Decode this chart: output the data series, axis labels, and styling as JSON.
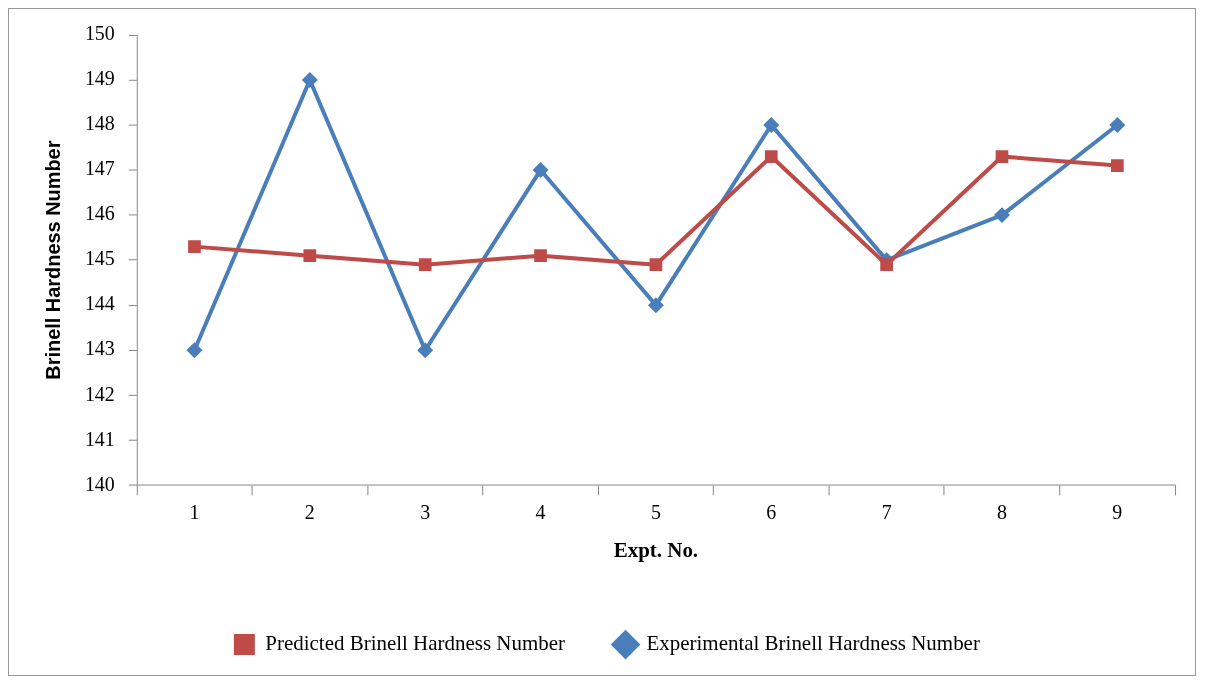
{
  "chart_data": {
    "type": "line",
    "xlabel": "Expt. No.",
    "ylabel": "Brinell Hardness Number",
    "categories": [
      "1",
      "2",
      "3",
      "4",
      "5",
      "6",
      "7",
      "8",
      "9"
    ],
    "series": [
      {
        "name": "Experimental Brinell Hardness Number",
        "color": "#4a7ebb",
        "marker": "diamond",
        "values": [
          143,
          149,
          143,
          147,
          144,
          148,
          145,
          146,
          148
        ]
      },
      {
        "name": "Predicted Brinell Hardness Number",
        "color": "#be4b48",
        "marker": "square",
        "values": [
          145.3,
          145.1,
          144.9,
          145.1,
          144.9,
          147.3,
          144.9,
          147.3,
          147.1
        ]
      }
    ],
    "ylim": [
      140,
      150
    ],
    "yticks": [
      140,
      141,
      142,
      143,
      144,
      145,
      146,
      147,
      148,
      149,
      150
    ],
    "grid": false,
    "legend": "bottom",
    "line_style": "solid"
  }
}
